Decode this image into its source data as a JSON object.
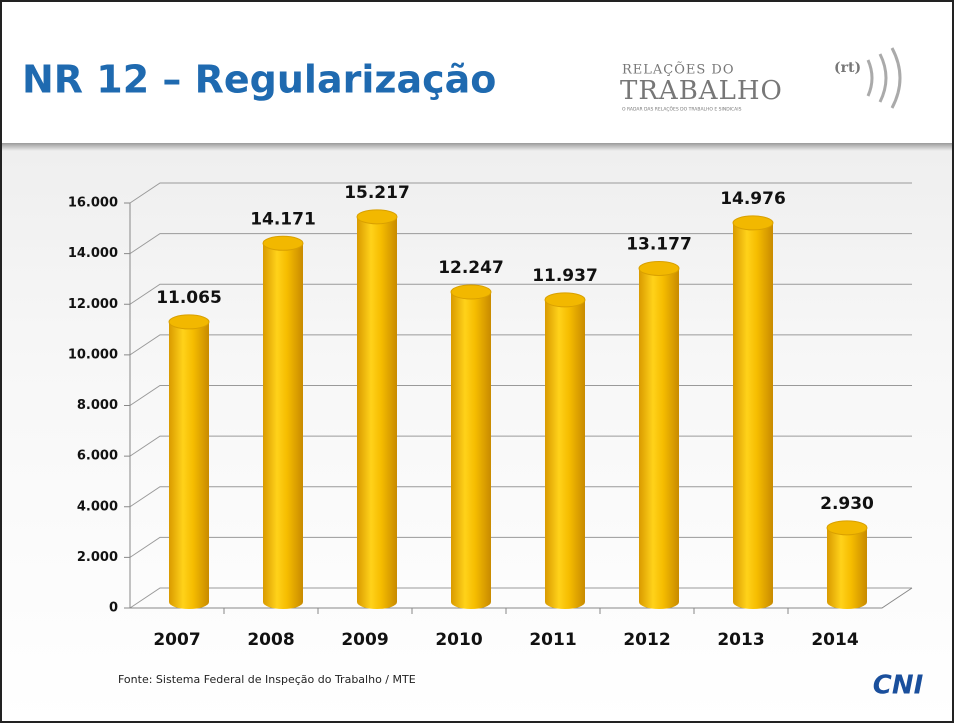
{
  "header": {
    "title": "NR 12 – Regularização",
    "logo": {
      "line1": "RELAÇÕES DO",
      "line2": "TRABALHO",
      "mark": "(rt)",
      "tagline": "O RADAR DAS RELAÇÕES DO TRABALHO E SINDICAIS"
    }
  },
  "chart_data": {
    "type": "bar",
    "categories": [
      "2007",
      "2008",
      "2009",
      "2010",
      "2011",
      "2012",
      "2013",
      "2014"
    ],
    "values": [
      11065,
      14171,
      15217,
      12247,
      11937,
      13177,
      14976,
      2930
    ],
    "value_labels": [
      "11.065",
      "14.171",
      "15.217",
      "12.247",
      "11.937",
      "13.177",
      "14.976",
      "2.930"
    ],
    "color": "#f2b800",
    "ylim": [
      0,
      16000
    ],
    "yticks": [
      0,
      {
        "value": 2000,
        "label": "2.000"
      },
      {
        "value": 4000,
        "label": "4.000"
      },
      {
        "value": 6000,
        "label": "6.000"
      },
      {
        "value": 8000,
        "label": "8.000"
      },
      {
        "value": 10000,
        "label": "10.000"
      },
      {
        "value": 12000,
        "label": "12.000"
      },
      {
        "value": 14000,
        "label": "14.000"
      },
      {
        "value": 16000,
        "label": "16.000"
      }
    ],
    "grid": true
  },
  "footer": {
    "source": "Fonte: Sistema Federal de Inspeção do Trabalho / MTE",
    "brand": "CNI"
  }
}
